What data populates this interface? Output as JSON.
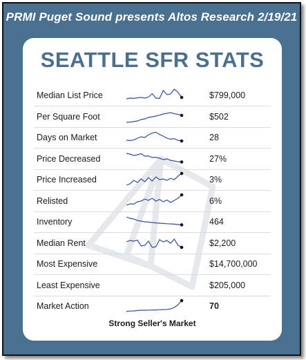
{
  "header": {
    "title": "PRMI Puget Sound presents Altos Research 2/19/21"
  },
  "card": {
    "title": "SEATTLE SFR STATS",
    "caption": "Strong Seller's Market"
  },
  "colors": {
    "frame": "#4a7090",
    "title": "#4c6f8e",
    "sparkline": "#2e4f9a"
  },
  "stats": [
    {
      "label": "Median List Price",
      "value": "$799,000",
      "trend": [
        0.25,
        0.3,
        0.28,
        0.32,
        0.35,
        0.3,
        0.38,
        0.62,
        0.3,
        0.28,
        0.85,
        0.55,
        0.6,
        0.95,
        0.72,
        0.35
      ]
    },
    {
      "label": "Per Square Foot",
      "value": "$502",
      "trend": [
        0.1,
        0.12,
        0.15,
        0.2,
        0.3,
        0.35,
        0.45,
        0.5,
        0.55,
        0.62,
        0.7,
        0.75,
        0.8,
        0.72,
        0.68,
        0.6
      ]
    },
    {
      "label": "Days on Market",
      "value": "28",
      "trend": [
        0.3,
        0.28,
        0.32,
        0.45,
        0.55,
        0.5,
        0.7,
        0.82,
        0.88,
        0.72,
        0.6,
        0.45,
        0.38,
        0.42,
        0.3,
        0.25
      ]
    },
    {
      "label": "Price Decreased",
      "value": "27%",
      "trend": [
        0.9,
        0.85,
        0.75,
        0.8,
        0.88,
        0.7,
        0.72,
        0.6,
        0.62,
        0.55,
        0.45,
        0.5,
        0.4,
        0.35,
        0.3,
        0.28
      ]
    },
    {
      "label": "Price Increased",
      "value": "3%",
      "trend": [
        0.1,
        0.2,
        0.45,
        0.3,
        0.55,
        0.35,
        0.65,
        0.4,
        0.7,
        0.5,
        0.55,
        0.45,
        0.6,
        0.5,
        0.75,
        0.95
      ]
    },
    {
      "label": "Relisted",
      "value": "6%",
      "trend": [
        0.2,
        0.3,
        0.28,
        0.45,
        0.5,
        0.65,
        0.55,
        0.7,
        0.5,
        0.62,
        0.45,
        0.58,
        0.4,
        0.55,
        0.7,
        0.95
      ]
    },
    {
      "label": "Inventory",
      "value": "464",
      "trend": [
        0.85,
        0.75,
        0.7,
        0.6,
        0.55,
        0.5,
        0.48,
        0.45,
        0.42,
        0.4,
        0.38,
        0.36,
        0.35,
        0.33,
        0.3,
        0.28
      ]
    },
    {
      "label": "Median Rent",
      "value": "$2,200",
      "trend": [
        0.6,
        0.7,
        0.65,
        0.72,
        0.3,
        0.35,
        0.65,
        0.2,
        0.25,
        0.75,
        0.6,
        0.7,
        0.5,
        0.8,
        0.35,
        0.2
      ]
    },
    {
      "label": "Most Expensive",
      "value": "$14,700,000",
      "trend": []
    },
    {
      "label": "Least Expensive",
      "value": "$205,000",
      "trend": []
    },
    {
      "label": "Market Action",
      "value": "70",
      "trend": [
        0.12,
        0.14,
        0.15,
        0.18,
        0.2,
        0.2,
        0.21,
        0.22,
        0.22,
        0.24,
        0.25,
        0.26,
        0.3,
        0.4,
        0.6,
        0.9
      ]
    }
  ]
}
